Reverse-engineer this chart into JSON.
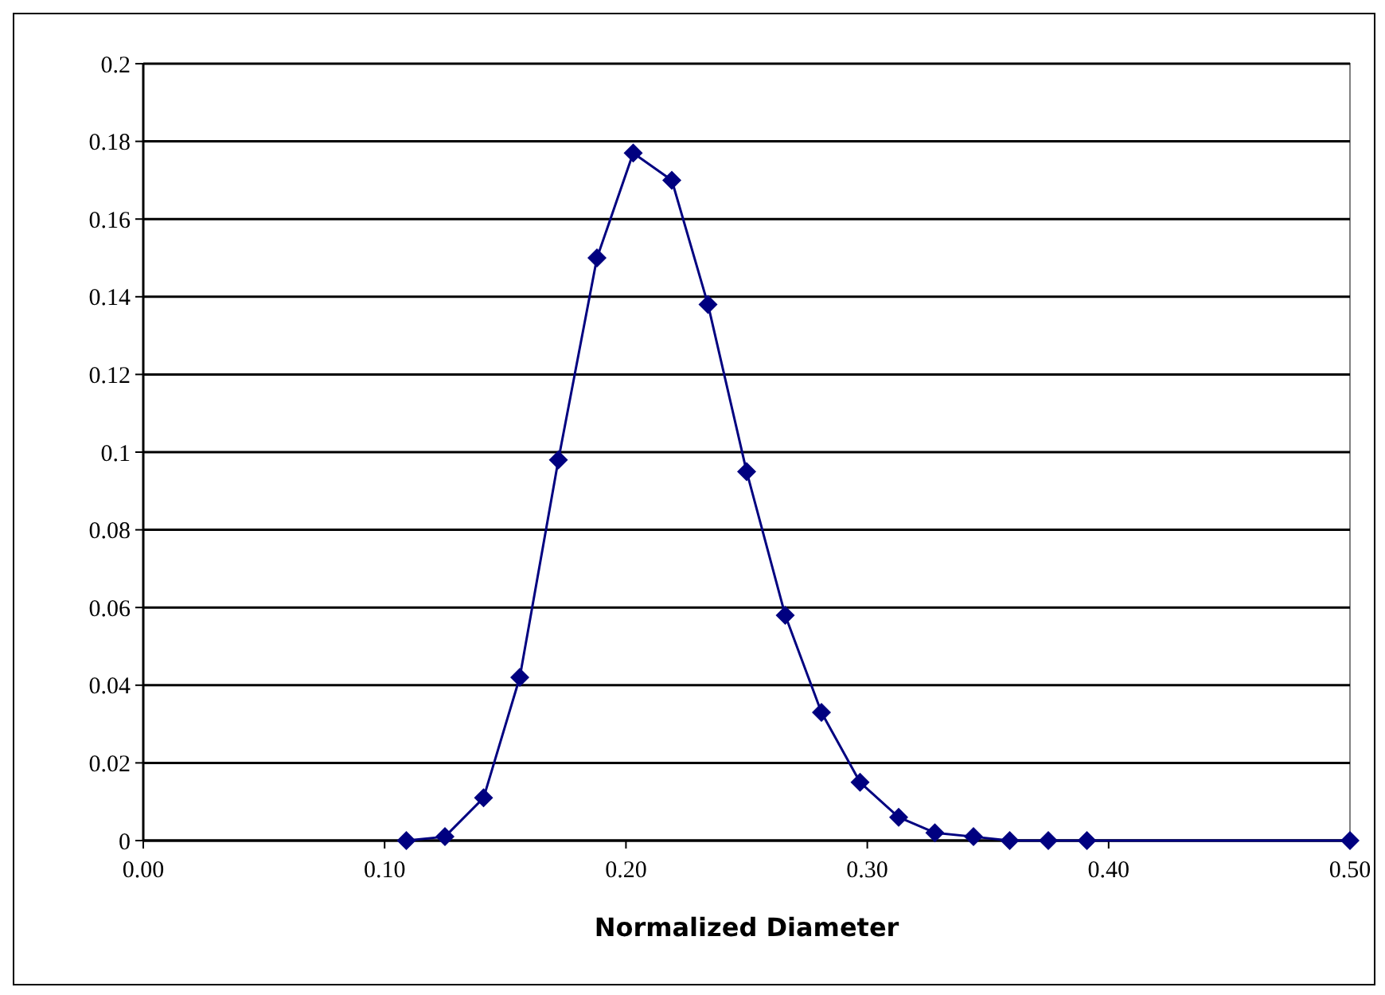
{
  "chart_data": {
    "type": "line",
    "xlabel": "Normalized Diameter",
    "x": [
      0.109,
      0.125,
      0.141,
      0.156,
      0.172,
      0.188,
      0.203,
      0.219,
      0.234,
      0.25,
      0.266,
      0.281,
      0.297,
      0.313,
      0.328,
      0.344,
      0.359,
      0.375,
      0.391,
      0.5
    ],
    "series": [
      {
        "color": "#000080",
        "values": [
          0,
          0.001,
          0.011,
          0.042,
          0.098,
          0.15,
          0.177,
          0.17,
          0.138,
          0.095,
          0.058,
          0.033,
          0.015,
          0.006,
          0.002,
          0.001,
          0,
          0,
          0,
          0
        ]
      }
    ],
    "xlim": [
      0,
      0.5
    ],
    "xticks": [
      {
        "value": 0,
        "label": "0.00"
      },
      {
        "value": 0.1,
        "label": "0.10"
      },
      {
        "value": 0.2,
        "label": "0.20"
      },
      {
        "value": 0.3,
        "label": "0.30"
      },
      {
        "value": 0.4,
        "label": "0.40"
      },
      {
        "value": 0.5,
        "label": "0.50"
      }
    ],
    "ylim": [
      0,
      0.2
    ],
    "yticks": [
      0,
      0.02,
      0.04,
      0.06,
      0.08,
      0.1,
      0.12,
      0.14,
      0.16,
      0.18,
      0.2
    ],
    "grid": "y",
    "marker": "diamond",
    "line_style": "solid"
  }
}
